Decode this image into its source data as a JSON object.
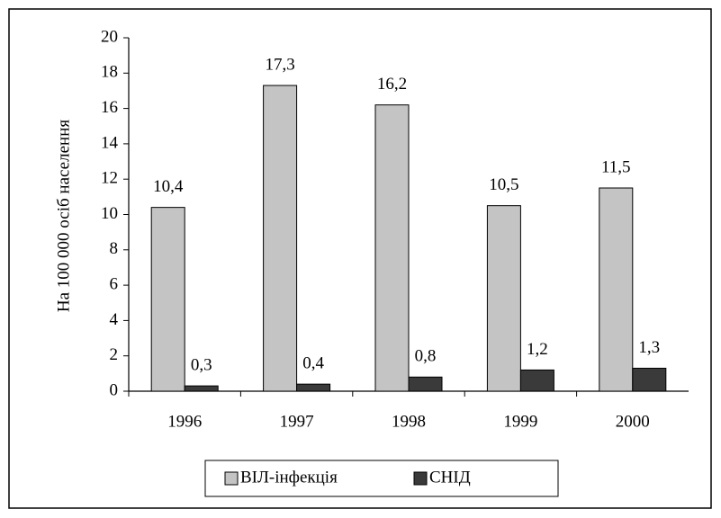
{
  "chart_data": {
    "type": "bar",
    "y_label": "На 100 000 осіб населення",
    "categories": [
      "1996",
      "1997",
      "1998",
      "1999",
      "2000"
    ],
    "series": [
      {
        "name": "ВІЛ-інфекція",
        "color": "#c4c4c4",
        "values": [
          10.4,
          17.3,
          16.2,
          10.5,
          11.5
        ],
        "value_labels": [
          "10,4",
          "17,3",
          "16,2",
          "10,5",
          "11,5"
        ]
      },
      {
        "name": "СНІД",
        "color": "#3a3a3a",
        "values": [
          0.3,
          0.4,
          0.8,
          1.2,
          1.3
        ],
        "value_labels": [
          "0,3",
          "0,4",
          "0,8",
          "1,2",
          "1,3"
        ]
      }
    ],
    "ylim": [
      0,
      20
    ],
    "yticks": [
      0,
      2,
      4,
      6,
      8,
      10,
      12,
      14,
      16,
      18,
      20
    ],
    "grid": false,
    "legend": "bottom"
  }
}
